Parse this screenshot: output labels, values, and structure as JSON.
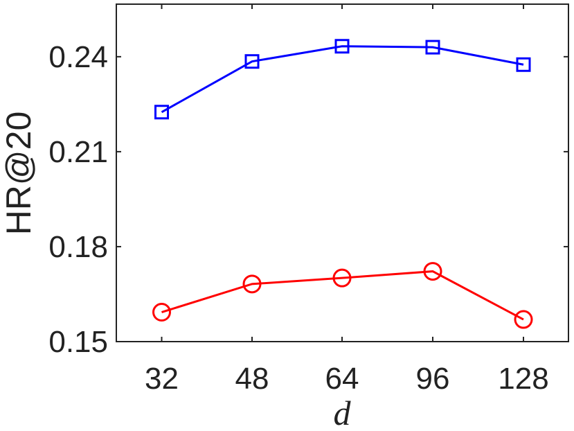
{
  "chart_data": {
    "type": "line",
    "categories": [
      "32",
      "48",
      "64",
      "96",
      "128"
    ],
    "series": [
      {
        "values": [
          0.2225,
          0.2385,
          0.2433,
          0.243,
          0.2375
        ],
        "color": "#0000ff",
        "marker": "square"
      },
      {
        "values": [
          0.1593,
          0.1682,
          0.1701,
          0.1722,
          0.157
        ],
        "color": "#ff0000",
        "marker": "circle"
      }
    ],
    "xlabel": "d",
    "ylabel": "HR@20",
    "ylim": [
      0.15,
      0.2566
    ],
    "yticks": [
      "0.15",
      "0.18",
      "0.21",
      "0.24"
    ],
    "grid": false,
    "legend": "none"
  }
}
